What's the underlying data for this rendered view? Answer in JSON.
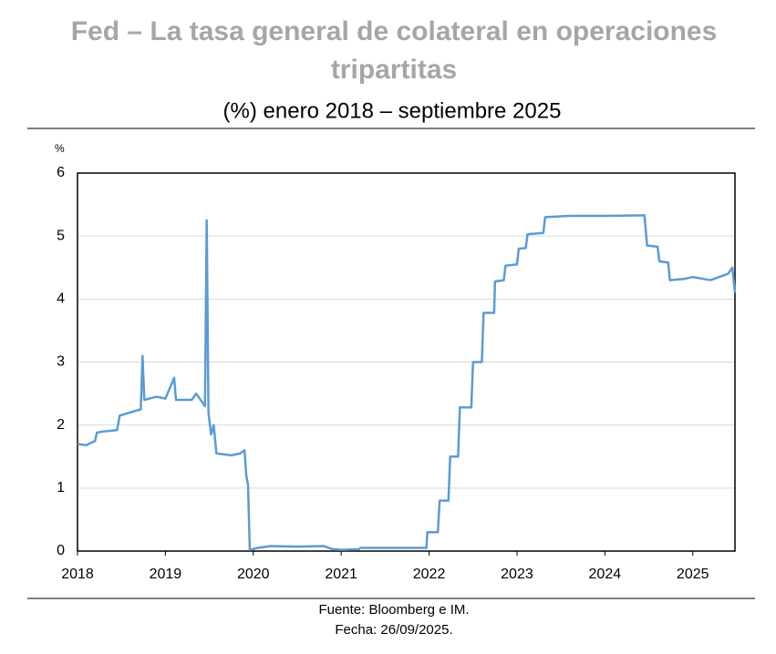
{
  "chart_data": {
    "type": "line",
    "title": "Fed – La tasa general de colateral en operaciones tripartitas",
    "title_lines": [
      "Fed – La tasa general de colateral en operaciones",
      "tripartitas"
    ],
    "subtitle": "(%) enero 2018 – septiembre 2025",
    "y_label": "%",
    "source": "Fuente: Bloomberg e IM.",
    "date": "Fecha: 26/09/2025.",
    "x": [
      2018.0,
      2018.1,
      2018.2,
      2018.22,
      2018.3,
      2018.45,
      2018.48,
      2018.6,
      2018.72,
      2018.74,
      2018.76,
      2018.9,
      2019.0,
      2019.1,
      2019.12,
      2019.3,
      2019.35,
      2019.45,
      2019.47,
      2019.49,
      2019.52,
      2019.55,
      2019.58,
      2019.75,
      2019.85,
      2019.9,
      2019.92,
      2019.94,
      2019.96,
      2020.05,
      2020.2,
      2020.5,
      2020.8,
      2020.9,
      2021.0,
      2021.2,
      2021.22,
      2021.97,
      2021.98,
      2022.1,
      2022.12,
      2022.22,
      2022.24,
      2022.33,
      2022.35,
      2022.48,
      2022.5,
      2022.6,
      2022.62,
      2022.74,
      2022.75,
      2022.85,
      2022.87,
      2023.0,
      2023.02,
      2023.1,
      2023.12,
      2023.3,
      2023.32,
      2023.6,
      2024.0,
      2024.45,
      2024.48,
      2024.6,
      2024.62,
      2024.72,
      2024.74,
      2024.9,
      2025.0,
      2025.2,
      2025.4,
      2025.45,
      2025.48
    ],
    "series": [
      {
        "name": "Tasa general de colateral",
        "color": "#5b9bd5",
        "values": [
          1.7,
          1.68,
          1.75,
          1.88,
          1.9,
          1.92,
          2.15,
          2.2,
          2.25,
          3.1,
          2.4,
          2.45,
          2.42,
          2.75,
          2.4,
          2.4,
          2.5,
          2.3,
          5.25,
          2.2,
          1.85,
          2.0,
          1.55,
          1.52,
          1.55,
          1.6,
          1.2,
          1.05,
          0.02,
          0.05,
          0.08,
          0.07,
          0.08,
          0.03,
          0.02,
          0.03,
          0.05,
          0.05,
          0.3,
          0.3,
          0.8,
          0.8,
          1.5,
          1.5,
          2.28,
          2.28,
          3.0,
          3.0,
          3.78,
          3.78,
          4.28,
          4.3,
          4.53,
          4.55,
          4.8,
          4.81,
          5.03,
          5.05,
          5.3,
          5.32,
          5.32,
          5.33,
          4.85,
          4.83,
          4.6,
          4.58,
          4.3,
          4.32,
          4.35,
          4.3,
          4.4,
          4.5,
          4.1
        ]
      }
    ],
    "xlim": [
      2018,
      2025.48
    ],
    "xticks": [
      2018,
      2019,
      2020,
      2021,
      2022,
      2023,
      2024,
      2025
    ],
    "ylim": [
      0,
      6
    ],
    "yticks": [
      0,
      1,
      2,
      3,
      4,
      5,
      6
    ],
    "grid": true
  }
}
